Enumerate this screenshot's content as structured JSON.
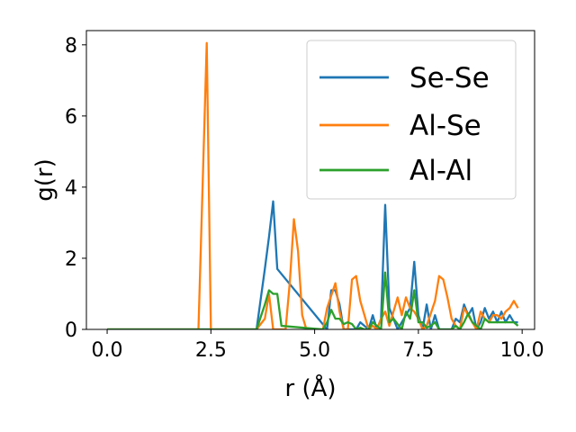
{
  "chart_data": {
    "type": "line",
    "title": "",
    "xlabel": "r (Å)",
    "ylabel": "g(r)",
    "xlim": [
      -0.5,
      10.3
    ],
    "ylim": [
      0,
      8.4
    ],
    "xticks": [
      0.0,
      2.5,
      5.0,
      7.5,
      10.0
    ],
    "xtick_labels": [
      "0.0",
      "2.5",
      "5.0",
      "7.5",
      "10.0"
    ],
    "yticks": [
      0,
      2,
      4,
      6,
      8
    ],
    "ytick_labels": [
      "0",
      "2",
      "4",
      "6",
      "8"
    ],
    "grid": false,
    "legend_position": "upper-right",
    "series": [
      {
        "name": "Se-Se",
        "color": "#1f77b4",
        "x": [
          0.0,
          3.6,
          3.8,
          3.9,
          4.0,
          4.1,
          5.3,
          5.4,
          5.5,
          5.6,
          5.7,
          5.9,
          6.0,
          6.1,
          6.3,
          6.4,
          6.5,
          6.6,
          6.7,
          6.8,
          7.0,
          7.2,
          7.3,
          7.4,
          7.5,
          7.6,
          7.7,
          7.8,
          7.9,
          8.0,
          8.3,
          8.4,
          8.5,
          8.6,
          8.7,
          8.8,
          8.9,
          9.0,
          9.1,
          9.2,
          9.3,
          9.4,
          9.5,
          9.6,
          9.7,
          9.8,
          9.9
        ],
        "y": [
          0.0,
          0.0,
          1.7,
          2.6,
          3.6,
          1.7,
          0.0,
          1.1,
          1.1,
          0.7,
          0.0,
          0.0,
          0.0,
          0.2,
          0.0,
          0.4,
          0.0,
          0.3,
          3.5,
          0.6,
          0.0,
          0.4,
          0.6,
          1.9,
          0.4,
          0.0,
          0.7,
          0.0,
          0.4,
          0.0,
          0.0,
          0.3,
          0.2,
          0.7,
          0.4,
          0.6,
          0.0,
          0.2,
          0.6,
          0.3,
          0.5,
          0.2,
          0.5,
          0.2,
          0.4,
          0.2,
          0.2
        ]
      },
      {
        "name": "Al-Se",
        "color": "#ff7f0e",
        "x": [
          0.0,
          2.2,
          2.4,
          2.5,
          3.6,
          3.8,
          3.9,
          4.0,
          4.3,
          4.4,
          4.5,
          4.6,
          4.7,
          4.8,
          5.2,
          5.3,
          5.5,
          5.6,
          5.7,
          5.8,
          5.9,
          6.0,
          6.1,
          6.3,
          6.4,
          6.5,
          6.6,
          6.7,
          6.8,
          7.0,
          7.1,
          7.2,
          7.3,
          7.4,
          7.5,
          7.6,
          7.7,
          7.9,
          8.0,
          8.1,
          8.2,
          8.3,
          8.4,
          8.5,
          8.6,
          8.7,
          8.8,
          8.9,
          9.0,
          9.1,
          9.2,
          9.3,
          9.4,
          9.5,
          9.6,
          9.7,
          9.8,
          9.9
        ],
        "y": [
          0.0,
          0.0,
          8.05,
          0.0,
          0.0,
          0.3,
          1.0,
          0.0,
          0.0,
          1.3,
          3.1,
          2.2,
          0.4,
          0.0,
          0.0,
          0.6,
          1.3,
          0.5,
          0.0,
          0.0,
          1.4,
          1.5,
          0.8,
          0.0,
          0.1,
          0.0,
          0.3,
          0.5,
          0.1,
          0.9,
          0.4,
          0.9,
          0.6,
          0.5,
          0.3,
          0.0,
          0.1,
          0.8,
          1.5,
          1.4,
          0.9,
          0.3,
          0.1,
          0.0,
          0.6,
          0.4,
          0.2,
          0.0,
          0.5,
          0.3,
          0.2,
          0.4,
          0.4,
          0.3,
          0.5,
          0.6,
          0.8,
          0.6
        ]
      },
      {
        "name": "Al-Al",
        "color": "#2ca02c",
        "x": [
          0.0,
          3.6,
          3.8,
          3.9,
          4.0,
          4.1,
          4.2,
          5.2,
          5.3,
          5.4,
          5.5,
          5.6,
          5.7,
          5.8,
          5.9,
          6.0,
          6.1,
          6.2,
          6.3,
          6.4,
          6.5,
          6.6,
          6.7,
          6.8,
          6.9,
          7.0,
          7.1,
          7.2,
          7.3,
          7.4,
          7.5,
          7.6,
          7.7,
          7.8,
          7.9,
          8.0,
          8.3,
          8.4,
          8.5,
          8.6,
          8.7,
          8.8,
          8.9,
          9.0,
          9.1,
          9.2,
          9.3,
          9.4,
          9.5,
          9.6,
          9.7,
          9.8,
          9.9
        ],
        "y": [
          0.0,
          0.0,
          0.7,
          1.1,
          1.0,
          1.0,
          0.1,
          0.0,
          0.2,
          0.55,
          0.3,
          0.3,
          0.15,
          0.2,
          0.15,
          0.0,
          0.05,
          0.0,
          0.0,
          0.2,
          0.1,
          0.0,
          1.6,
          0.2,
          0.3,
          0.15,
          0.0,
          0.5,
          0.3,
          1.1,
          0.2,
          0.2,
          0.05,
          0.1,
          0.2,
          0.0,
          0.0,
          0.1,
          0.0,
          0.2,
          0.45,
          0.2,
          0.1,
          0.0,
          0.3,
          0.2,
          0.2,
          0.2,
          0.2,
          0.2,
          0.2,
          0.2,
          0.1
        ]
      }
    ]
  }
}
